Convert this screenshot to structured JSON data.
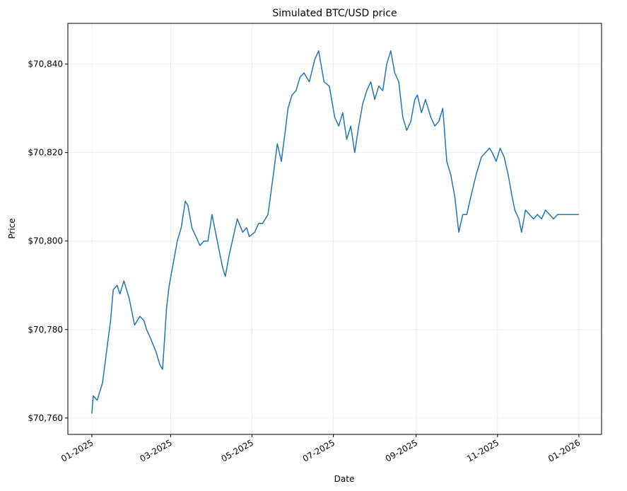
{
  "chart_data": {
    "type": "line",
    "title": "Simulated BTC/USD price",
    "xlabel": "Date",
    "ylabel": "Price",
    "xlim": [
      "2024-12-14",
      "2026-01-18"
    ],
    "ylim": [
      70756.3,
      70849.2
    ],
    "grid": true,
    "colors": {
      "series": "#1f77b4"
    },
    "x_ticks": [
      {
        "date": "2025-01-01",
        "label": "01-2025"
      },
      {
        "date": "2025-03-01",
        "label": "03-2025"
      },
      {
        "date": "2025-05-01",
        "label": "05-2025"
      },
      {
        "date": "2025-07-01",
        "label": "07-2025"
      },
      {
        "date": "2025-09-01",
        "label": "09-2025"
      },
      {
        "date": "2025-11-01",
        "label": "11-2025"
      },
      {
        "date": "2026-01-01",
        "label": "01-2026"
      }
    ],
    "y_ticks": [
      {
        "value": 70760,
        "label": "$70,760"
      },
      {
        "value": 70780,
        "label": "$70,780"
      },
      {
        "value": 70800,
        "label": "$70,800"
      },
      {
        "value": 70820,
        "label": "$70,820"
      },
      {
        "value": 70840,
        "label": "$70,840"
      }
    ],
    "series": [
      {
        "x": [
          "2025-01-01",
          "2025-01-02",
          "2025-01-05",
          "2025-01-09",
          "2025-01-12",
          "2025-01-15",
          "2025-01-17",
          "2025-01-20",
          "2025-01-22",
          "2025-01-25",
          "2025-01-29",
          "2025-02-02",
          "2025-02-06",
          "2025-02-09",
          "2025-02-11",
          "2025-02-14",
          "2025-02-18",
          "2025-02-21",
          "2025-02-23",
          "2025-02-26",
          "2025-02-28",
          "2025-03-03",
          "2025-03-06",
          "2025-03-09",
          "2025-03-12",
          "2025-03-14",
          "2025-03-17",
          "2025-03-20",
          "2025-03-23",
          "2025-03-26",
          "2025-03-29",
          "2025-04-01",
          "2025-04-05",
          "2025-04-09",
          "2025-04-11",
          "2025-04-14",
          "2025-04-17",
          "2025-04-20",
          "2025-04-24",
          "2025-04-27",
          "2025-04-29",
          "2025-05-03",
          "2025-05-06",
          "2025-05-09",
          "2025-05-13",
          "2025-05-17",
          "2025-05-20",
          "2025-05-23",
          "2025-05-26",
          "2025-05-28",
          "2025-05-31",
          "2025-06-03",
          "2025-06-06",
          "2025-06-09",
          "2025-06-13",
          "2025-06-17",
          "2025-06-20",
          "2025-06-24",
          "2025-06-28",
          "2025-07-02",
          "2025-07-05",
          "2025-07-08",
          "2025-07-11",
          "2025-07-14",
          "2025-07-17",
          "2025-07-20",
          "2025-07-23",
          "2025-07-26",
          "2025-07-29",
          "2025-08-01",
          "2025-08-04",
          "2025-08-07",
          "2025-08-10",
          "2025-08-13",
          "2025-08-16",
          "2025-08-19",
          "2025-08-22",
          "2025-08-25",
          "2025-08-28",
          "2025-08-31",
          "2025-09-02",
          "2025-09-05",
          "2025-09-08",
          "2025-09-12",
          "2025-09-15",
          "2025-09-18",
          "2025-09-21",
          "2025-09-24",
          "2025-09-27",
          "2025-09-30",
          "2025-10-03",
          "2025-10-06",
          "2025-10-09",
          "2025-10-12",
          "2025-10-16",
          "2025-10-20",
          "2025-10-23",
          "2025-10-26",
          "2025-10-28",
          "2025-10-31",
          "2025-11-03",
          "2025-11-06",
          "2025-11-09",
          "2025-11-12",
          "2025-11-14",
          "2025-11-17",
          "2025-11-19",
          "2025-11-22",
          "2025-11-25",
          "2025-11-28",
          "2025-12-01",
          "2025-12-04",
          "2025-12-07",
          "2025-12-10",
          "2025-12-13",
          "2025-12-16",
          "2025-12-19",
          "2025-12-21",
          "2025-12-24",
          "2025-12-27",
          "2025-12-29",
          "2026-01-01"
        ],
        "values": [
          70761,
          70765,
          70764,
          70768,
          70775,
          70782,
          70789,
          70790,
          70788,
          70791,
          70787,
          70781,
          70783,
          70782,
          70780,
          70778,
          70775,
          70772,
          70771,
          70785,
          70790,
          70795,
          70800,
          70803,
          70809,
          70808,
          70803,
          70801,
          70799,
          70800,
          70800,
          70806,
          70800,
          70794,
          70792,
          70797,
          70801,
          70805,
          70802,
          70803,
          70801,
          70802,
          70804,
          70804,
          70806,
          70815,
          70822,
          70818,
          70825,
          70830,
          70833,
          70834,
          70837,
          70838,
          70836,
          70841,
          70843,
          70836,
          70835,
          70828,
          70826,
          70829,
          70823,
          70826,
          70820,
          70826,
          70831,
          70834,
          70836,
          70832,
          70835,
          70834,
          70840,
          70843,
          70838,
          70836,
          70828,
          70825,
          70827,
          70832,
          70833,
          70829,
          70832,
          70828,
          70826,
          70827,
          70830,
          70818,
          70815,
          70810,
          70802,
          70806,
          70806,
          70810,
          70815,
          70819,
          70820,
          70821,
          70820,
          70818,
          70821,
          70819,
          70815,
          70810,
          70807,
          70805,
          70802,
          70807,
          70806,
          70805,
          70806,
          70805,
          70807,
          70806,
          70805,
          70806,
          70806,
          70806,
          70806,
          70806,
          70806,
          70806
        ]
      }
    ]
  }
}
